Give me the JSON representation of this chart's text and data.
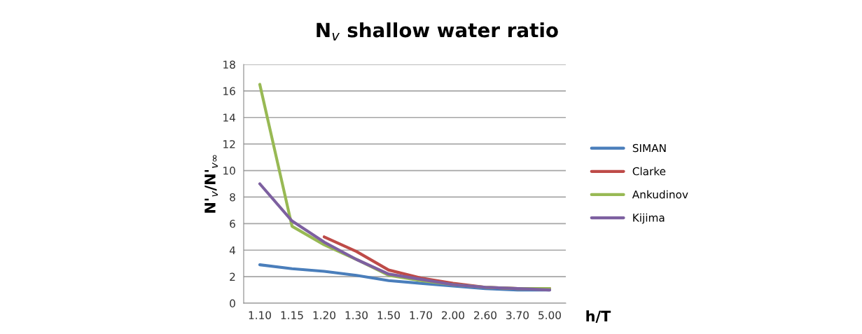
{
  "chart_data": {
    "type": "line",
    "title": "N$_{v}$ shallow water ratio",
    "xlabel": "h/T",
    "ylabel": "N'$_{v}$/N'$_{v∞}$",
    "categories": [
      "1.10",
      "1.15",
      "1.20",
      "1.30",
      "1.50",
      "1.70",
      "2.00",
      "2.60",
      "3.70",
      "5.00"
    ],
    "series": [
      {
        "name": "SIMAN",
        "color": "#4a7ebb",
        "values": [
          2.9,
          2.6,
          2.4,
          2.1,
          1.7,
          1.5,
          1.3,
          1.1,
          1.0,
          1.0
        ]
      },
      {
        "name": "Clarke",
        "color": "#be4b48",
        "values": [
          null,
          null,
          5.0,
          3.9,
          2.5,
          1.9,
          1.5,
          1.2,
          1.1,
          1.1
        ]
      },
      {
        "name": "Ankudinov",
        "color": "#98b954",
        "values": [
          16.5,
          5.8,
          4.4,
          3.3,
          2.1,
          1.7,
          1.4,
          1.2,
          1.1,
          1.1
        ]
      },
      {
        "name": "Kijima",
        "color": "#7d60a0",
        "values": [
          9.0,
          6.2,
          4.6,
          3.3,
          2.2,
          1.8,
          1.4,
          1.2,
          1.1,
          1.0
        ]
      }
    ],
    "ylim": [
      0,
      18
    ],
    "yticks": [
      0,
      2,
      4,
      6,
      8,
      10,
      12,
      14,
      16,
      18
    ],
    "grid": "y",
    "legend": "right"
  }
}
